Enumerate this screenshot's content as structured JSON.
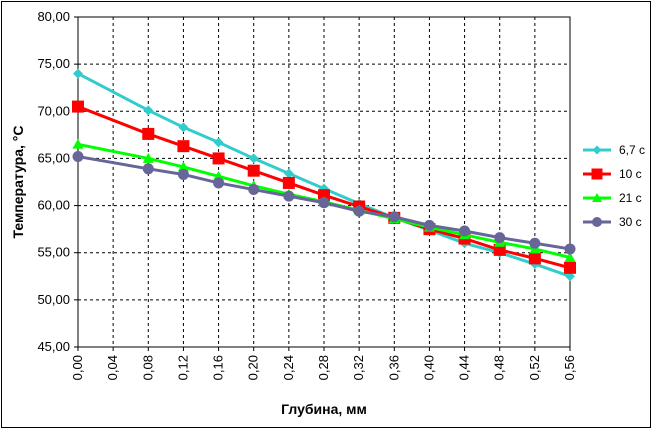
{
  "chart_data": {
    "type": "line",
    "title": "",
    "xlabel": "Глубина, мм",
    "ylabel": "Температура, °С",
    "xlim": [
      0,
      0.56
    ],
    "ylim": [
      45,
      80
    ],
    "x_ticks": [
      "0,00",
      "0,04",
      "0,08",
      "0,12",
      "0,16",
      "0,20",
      "0,24",
      "0,28",
      "0,32",
      "0,36",
      "0,40",
      "0,44",
      "0,48",
      "0,52",
      "0,56"
    ],
    "y_ticks": [
      "45,00",
      "50,00",
      "55,00",
      "60,00",
      "65,00",
      "70,00",
      "75,00",
      "80,00"
    ],
    "grid": true,
    "legend_position": "right",
    "series": [
      {
        "name": "6,7 с",
        "color": "#33CCCC",
        "marker": "diamond",
        "x": [
          0,
          0.08,
          0.12,
          0.16,
          0.2,
          0.24,
          0.28,
          0.32,
          0.36,
          0.4,
          0.44,
          0.48,
          0.52,
          0.56
        ],
        "values": [
          74.0,
          70.1,
          68.3,
          66.7,
          65.0,
          63.4,
          61.8,
          60.2,
          58.7,
          57.4,
          56.0,
          55.0,
          53.8,
          52.5
        ]
      },
      {
        "name": "10 с",
        "color": "#FF0000",
        "marker": "square",
        "x": [
          0,
          0.08,
          0.12,
          0.16,
          0.2,
          0.24,
          0.28,
          0.32,
          0.36,
          0.4,
          0.44,
          0.48,
          0.52,
          0.56
        ],
        "values": [
          70.5,
          67.6,
          66.3,
          65.0,
          63.7,
          62.4,
          61.1,
          59.9,
          58.7,
          57.5,
          56.5,
          55.3,
          54.4,
          53.4
        ]
      },
      {
        "name": "21 с",
        "color": "#00FF00",
        "marker": "triangle",
        "x": [
          0,
          0.08,
          0.12,
          0.16,
          0.2,
          0.24,
          0.28,
          0.32,
          0.36,
          0.4,
          0.44,
          0.48,
          0.52,
          0.56
        ],
        "values": [
          66.5,
          65.0,
          64.1,
          63.1,
          62.1,
          61.2,
          60.4,
          59.5,
          58.6,
          57.7,
          56.9,
          56.1,
          55.4,
          54.5
        ]
      },
      {
        "name": "30 с",
        "color": "#666699",
        "marker": "circle",
        "x": [
          0,
          0.08,
          0.12,
          0.16,
          0.2,
          0.24,
          0.28,
          0.32,
          0.36,
          0.4,
          0.44,
          0.48,
          0.52,
          0.56
        ],
        "values": [
          65.2,
          63.9,
          63.3,
          62.4,
          61.7,
          61.0,
          60.3,
          59.4,
          58.8,
          57.9,
          57.3,
          56.6,
          56.0,
          55.4
        ]
      }
    ]
  }
}
